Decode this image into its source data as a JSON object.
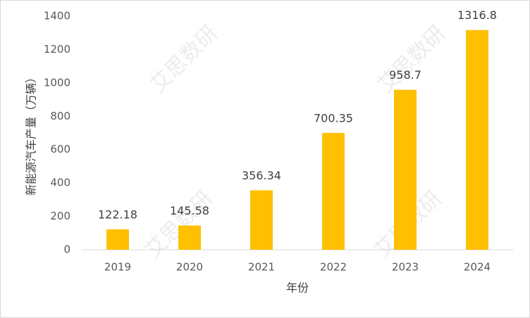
{
  "chart_data": {
    "type": "bar",
    "categories": [
      "2019",
      "2020",
      "2021",
      "2022",
      "2023",
      "2024"
    ],
    "values": [
      122.18,
      145.58,
      356.34,
      700.35,
      958.7,
      1316.8
    ],
    "color": "#ffc000",
    "ylim": [
      0,
      1400
    ],
    "yticks": [
      0,
      200,
      400,
      600,
      800,
      1000,
      1200,
      1400
    ],
    "grid": false,
    "xlabel": "年份",
    "ylabel": "新能源汽车产量（万辆）",
    "watermark": "艾思数研"
  }
}
